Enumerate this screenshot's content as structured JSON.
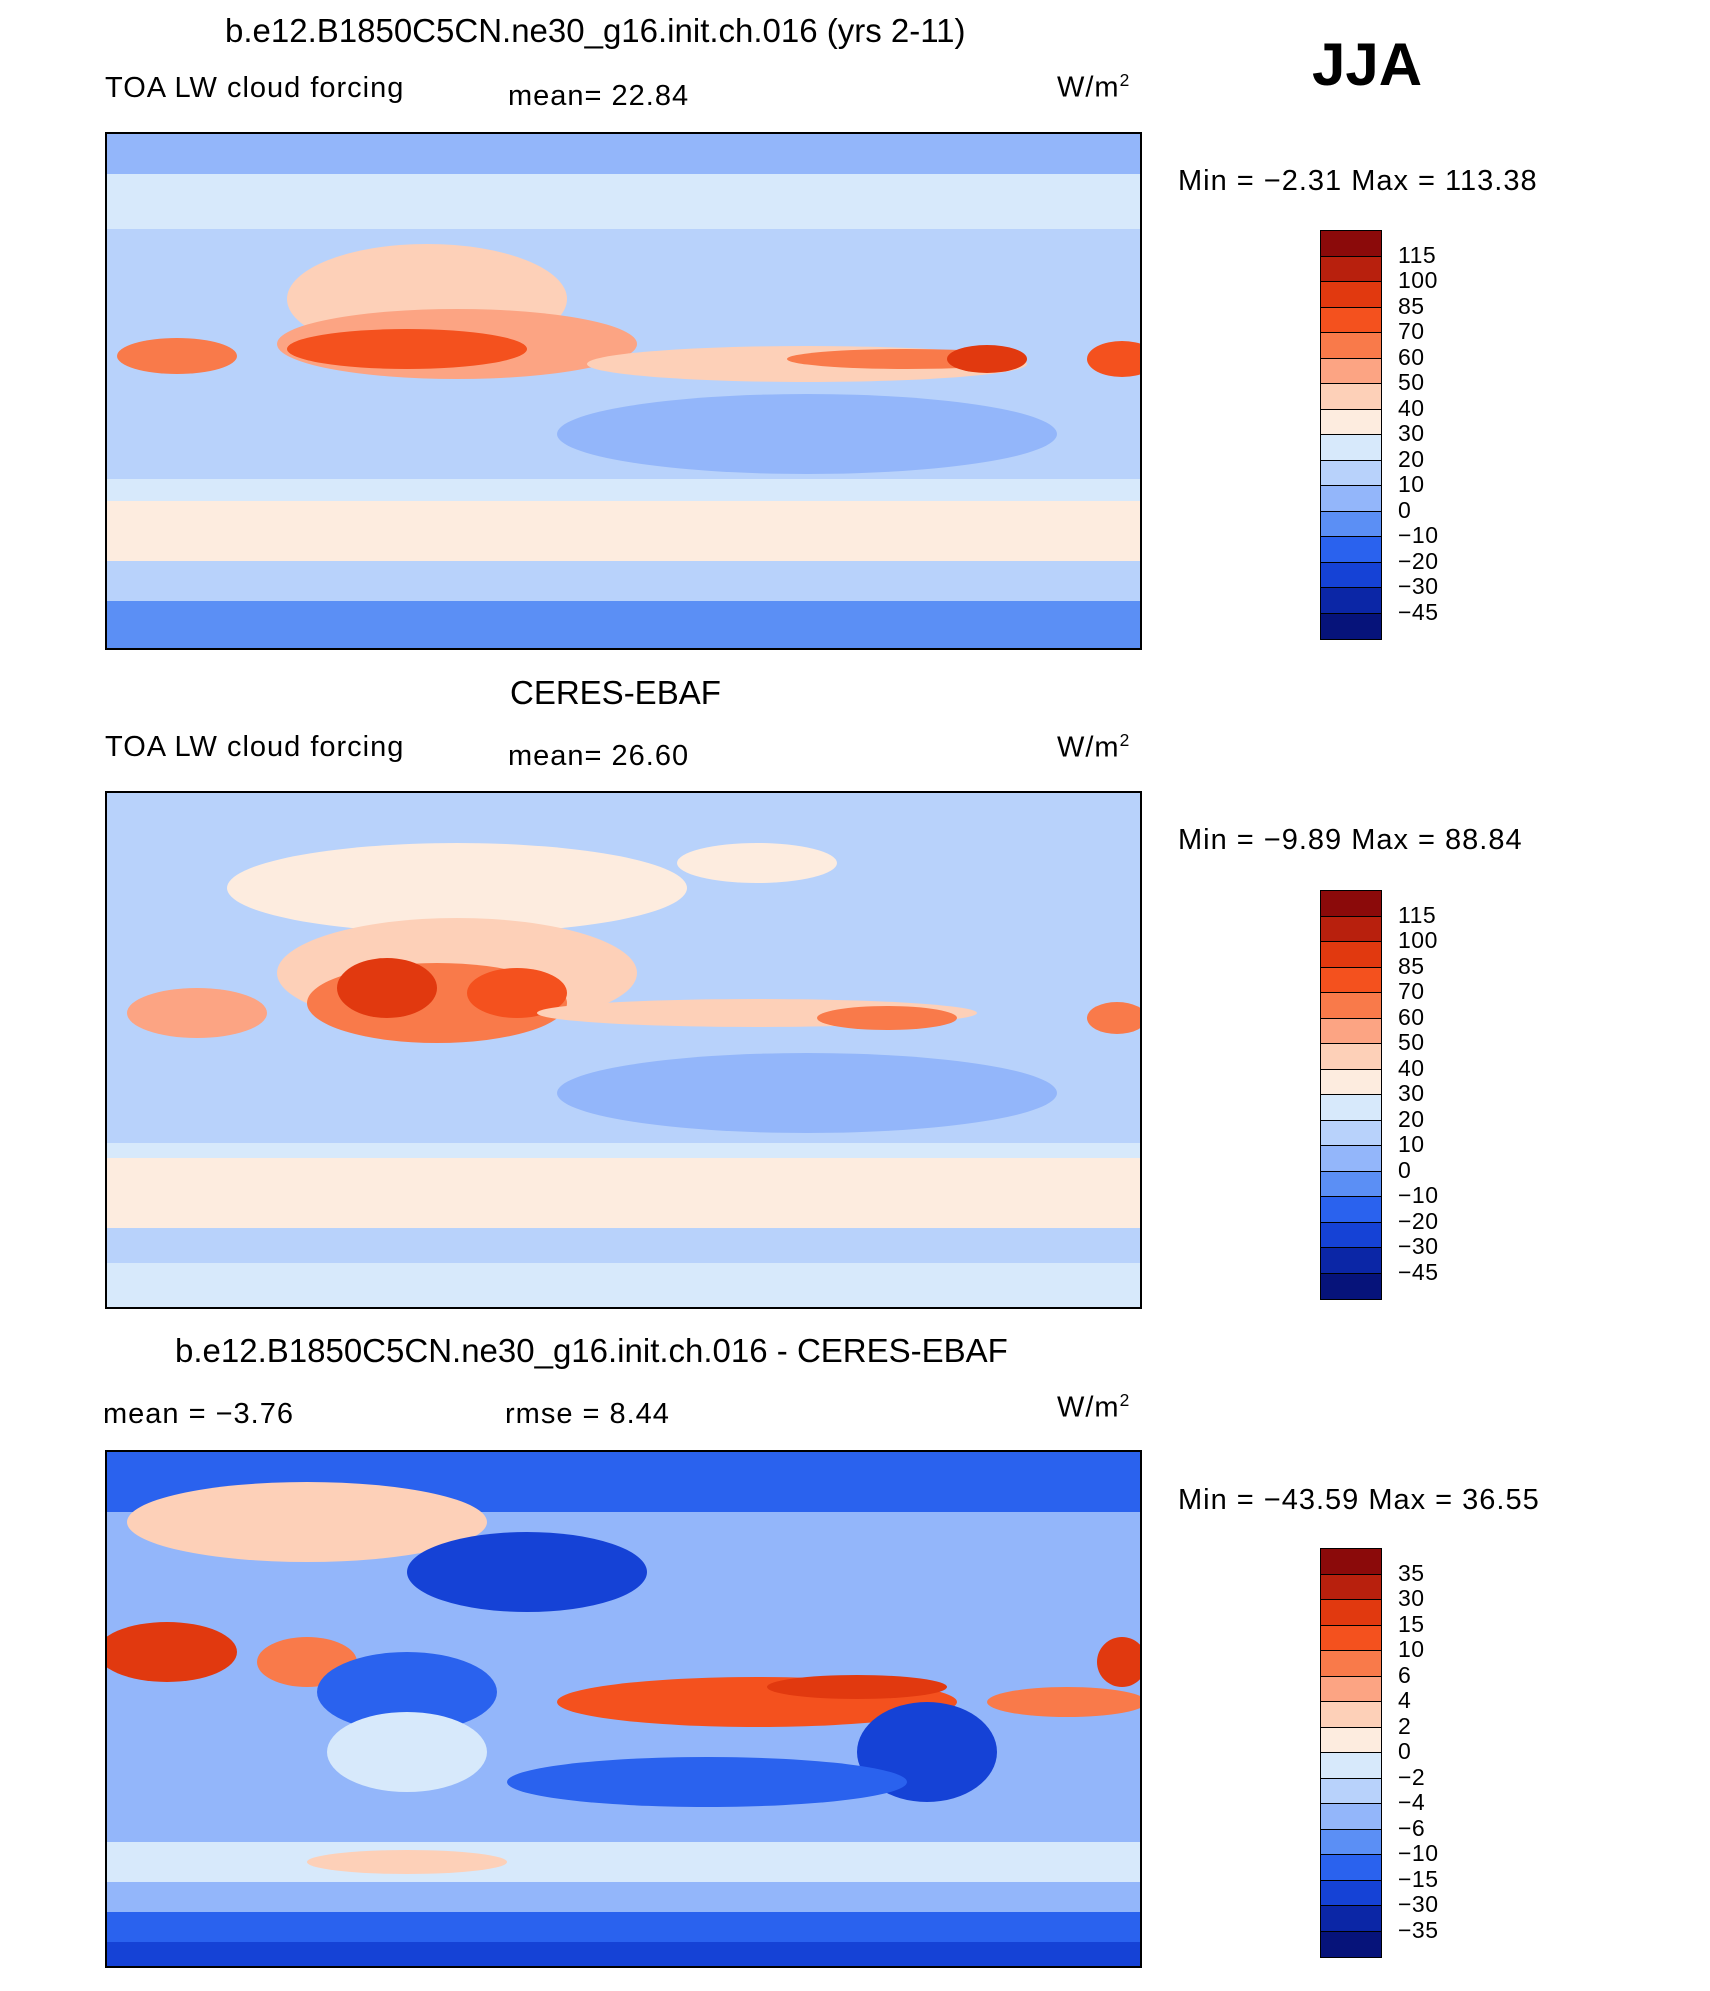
{
  "season": "JJA",
  "units_main": "W/m",
  "units_sup": "2",
  "panels": [
    {
      "title": "b.e12.B1850C5CN.ne30_g16.init.ch.016 (yrs 2-11)",
      "field": "TOA LW cloud forcing",
      "stat1": "mean=   22.84",
      "stat2": "",
      "minmax": "Min  =    −2.31  Max  =  113.38",
      "levels": [
        "115",
        "100",
        "85",
        "70",
        "60",
        "50",
        "40",
        "30",
        "20",
        "10",
        "0",
        "−10",
        "−20",
        "−30",
        "−45"
      ],
      "colors": [
        "#8b0a0a",
        "#b8200d",
        "#e1390f",
        "#f4511e",
        "#f97a4a",
        "#fca483",
        "#fdd0b8",
        "#fdecdf",
        "#d7e9fb",
        "#b8d2fb",
        "#93b6fa",
        "#5b8ff5",
        "#2a62ee",
        "#1542d6",
        "#0b26a6",
        "#06137a"
      ]
    },
    {
      "title": "CERES-EBAF",
      "field": "TOA LW cloud forcing",
      "stat1": "mean=   26.60",
      "stat2": "",
      "minmax": "Min  =    −9.89  Max  =    88.84",
      "levels": [
        "115",
        "100",
        "85",
        "70",
        "60",
        "50",
        "40",
        "30",
        "20",
        "10",
        "0",
        "−10",
        "−20",
        "−30",
        "−45"
      ],
      "colors": [
        "#8b0a0a",
        "#b8200d",
        "#e1390f",
        "#f4511e",
        "#f97a4a",
        "#fca483",
        "#fdd0b8",
        "#fdecdf",
        "#d7e9fb",
        "#b8d2fb",
        "#93b6fa",
        "#5b8ff5",
        "#2a62ee",
        "#1542d6",
        "#0b26a6",
        "#06137a"
      ]
    },
    {
      "title": "b.e12.B1850C5CN.ne30_g16.init.ch.016 - CERES-EBAF",
      "field": "",
      "stat1": "mean  =    −3.76",
      "stat2": "rmse  =     8.44",
      "minmax": "Min  = −43.59  Max  =    36.55",
      "levels": [
        "35",
        "30",
        "15",
        "10",
        "6",
        "4",
        "2",
        "0",
        "−2",
        "−4",
        "−6",
        "−10",
        "−15",
        "−30",
        "−35"
      ],
      "colors": [
        "#8b0a0a",
        "#b8200d",
        "#e1390f",
        "#f4511e",
        "#f97a4a",
        "#fca483",
        "#fdd0b8",
        "#fdecdf",
        "#d7e9fb",
        "#b8d2fb",
        "#93b6fa",
        "#5b8ff5",
        "#2a62ee",
        "#1542d6",
        "#0b26a6",
        "#06137a"
      ]
    }
  ]
}
